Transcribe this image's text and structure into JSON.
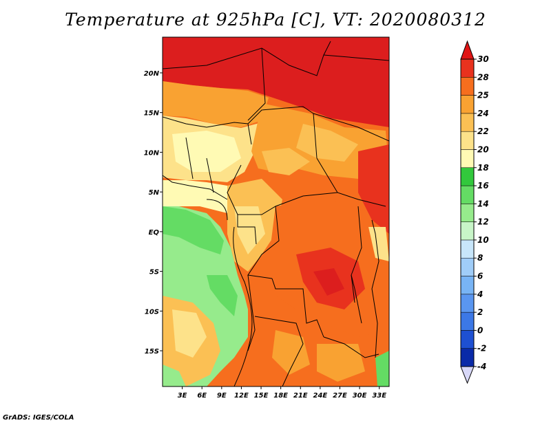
{
  "title": "Temperature at 925hPa [C], VT: 2020080312",
  "footer": "GrADS: IGES/COLA",
  "map": {
    "lat_range": [
      -19.5,
      24.5
    ],
    "lon_range": [
      0,
      34.5
    ],
    "lat_ticks": [
      {
        "value": 20,
        "label": "20N"
      },
      {
        "value": 15,
        "label": "15N"
      },
      {
        "value": 10,
        "label": "10N"
      },
      {
        "value": 5,
        "label": "5N"
      },
      {
        "value": 0,
        "label": "EQ"
      },
      {
        "value": -5,
        "label": "5S"
      },
      {
        "value": -10,
        "label": "10S"
      },
      {
        "value": -15,
        "label": "15S"
      }
    ],
    "lon_ticks": [
      {
        "value": 3,
        "label": "3E"
      },
      {
        "value": 6,
        "label": "6E"
      },
      {
        "value": 9,
        "label": "9E"
      },
      {
        "value": 12,
        "label": "12E"
      },
      {
        "value": 15,
        "label": "15E"
      },
      {
        "value": 18,
        "label": "18E"
      },
      {
        "value": 21,
        "label": "21E"
      },
      {
        "value": 24,
        "label": "24E"
      },
      {
        "value": 27,
        "label": "27E"
      },
      {
        "value": 30,
        "label": "30E"
      },
      {
        "value": 33,
        "label": "33E"
      }
    ]
  },
  "colorbar": {
    "levels": [
      "-4",
      "-2",
      "0",
      "2",
      "4",
      "6",
      "8",
      "10",
      "12",
      "14",
      "16",
      "18",
      "20",
      "22",
      "24",
      "25",
      "28",
      "30"
    ],
    "colors": [
      "#1a0a6e",
      "#0a2aa8",
      "#1e50d2",
      "#3c78e6",
      "#5a96f0",
      "#78b4f5",
      "#a0cdf8",
      "#c8e6fa",
      "#c8f5c8",
      "#96eb8c",
      "#64dc64",
      "#32c83c",
      "#fffab4",
      "#fde28a",
      "#fbc054",
      "#f9a232",
      "#f66e1e",
      "#e8321e",
      "#dc1e1e"
    ],
    "low_end_color": "#d8d8f8",
    "high_end_color": "#e01414"
  }
}
